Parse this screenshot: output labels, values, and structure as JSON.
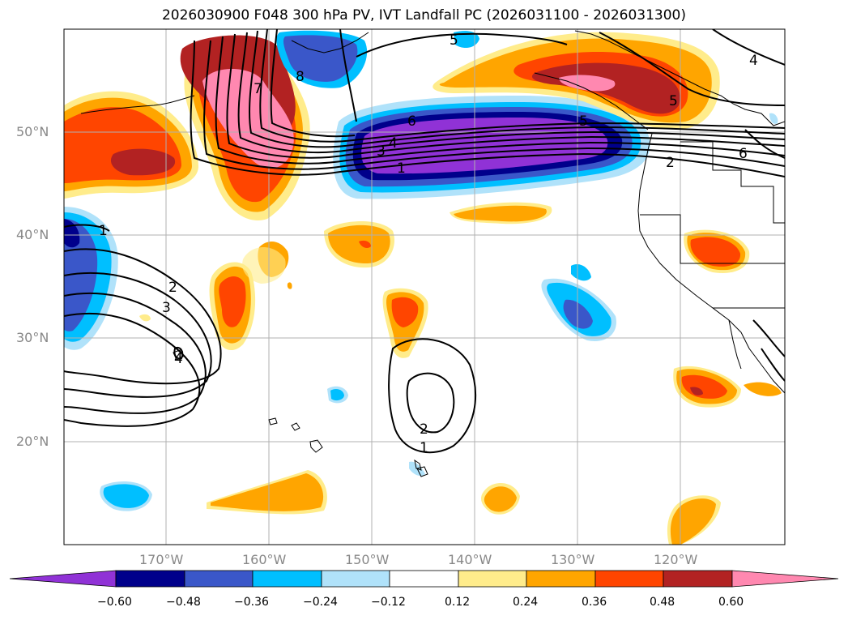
{
  "title": "2026030900 F048 300 hPa PV, IVT Landfall PC (2026031100 - 2026031300)",
  "colors": {
    "c1": "#9032d6",
    "c2": "#00008b",
    "c3": "#3a57c9",
    "c4": "#00bfff",
    "c5": "#b0e2fa",
    "c6": "#ffffff",
    "c7": "#ffec8b",
    "c8": "#ffa500",
    "c9": "#ff4500",
    "c10": "#b22222",
    "c11": "#ff88b0",
    "grid": "#b0b0b0",
    "contour": "#000000"
  },
  "lat_labels": [
    "50°N",
    "40°N",
    "30°N",
    "20°N"
  ],
  "lon_labels": [
    "170°W",
    "160°W",
    "150°W",
    "140°W",
    "130°W",
    "120°W"
  ],
  "colorbar": {
    "ticks": [
      "−0.60",
      "−0.48",
      "−0.36",
      "−0.24",
      "−0.12",
      "0.12",
      "0.24",
      "0.36",
      "0.48",
      "0.60"
    ]
  },
  "contour_labels": {
    "l1": "1",
    "l2": "2",
    "l3": "3",
    "l4": "4",
    "l5": "5",
    "l6": "6",
    "l7": "7",
    "l8": "8"
  }
}
